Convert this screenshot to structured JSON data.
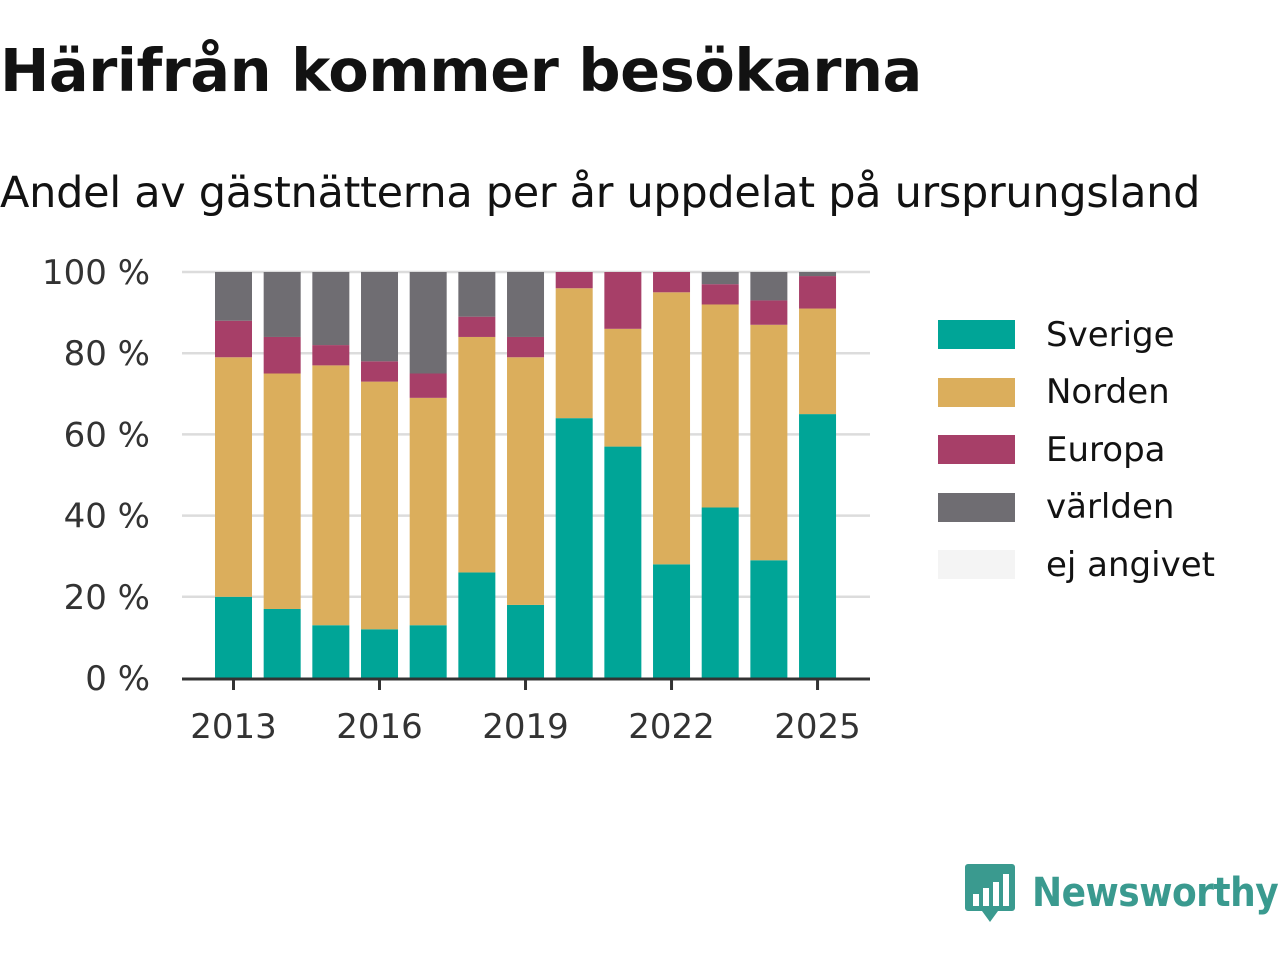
{
  "title": "Härifrån kommer besökarna",
  "subtitle": "Andel av gästnätterna per år uppdelat på ursprungsland",
  "brand": {
    "name": "Newsworthy"
  },
  "colors": {
    "Sverige": "#00a597",
    "Norden": "#dbae5c",
    "Europa": "#a73f68",
    "världen": "#6f6d72",
    "ej angivet": "#f4f4f4"
  },
  "legend": [
    "Sverige",
    "Norden",
    "Europa",
    "världen",
    "ej angivet"
  ],
  "chart_data": {
    "type": "bar",
    "stacked": true,
    "title": "Härifrån kommer besökarna",
    "subtitle": "Andel av gästnätterna per år uppdelat på ursprungsland",
    "categories": [
      "2013",
      "2014",
      "2015",
      "2016",
      "2017",
      "2018",
      "2019",
      "2020",
      "2021",
      "2022",
      "2023",
      "2024",
      "2025"
    ],
    "x_tick_labels": [
      "2013",
      "2016",
      "2019",
      "2022",
      "2025"
    ],
    "y_tick_labels": [
      "0 %",
      "20 %",
      "40 %",
      "60 %",
      "80 %",
      "100 %"
    ],
    "ylim": [
      0,
      100
    ],
    "grid": true,
    "legend_position": "right",
    "series": [
      {
        "name": "Sverige",
        "values": [
          20,
          17,
          13,
          12,
          13,
          26,
          18,
          64,
          57,
          28,
          42,
          29,
          65
        ]
      },
      {
        "name": "Norden",
        "values": [
          59,
          58,
          64,
          61,
          56,
          58,
          61,
          32,
          29,
          67,
          50,
          58,
          26
        ]
      },
      {
        "name": "Europa",
        "values": [
          9,
          9,
          5,
          5,
          6,
          5,
          5,
          4,
          14,
          5,
          5,
          6,
          8
        ]
      },
      {
        "name": "världen",
        "values": [
          12,
          16,
          18,
          22,
          25,
          11,
          16,
          0,
          0,
          0,
          3,
          7,
          1
        ]
      },
      {
        "name": "ej angivet",
        "values": [
          0,
          0,
          0,
          0,
          0,
          0,
          0,
          0,
          0,
          0,
          0,
          0,
          0
        ]
      }
    ]
  }
}
